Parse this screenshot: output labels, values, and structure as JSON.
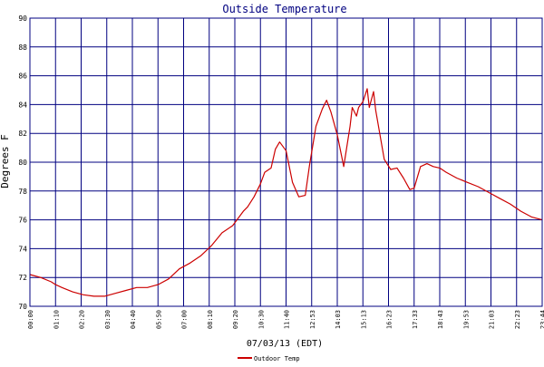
{
  "chart_data": {
    "type": "line",
    "title": "Outside Temperature",
    "xlabel": "07/03/13 (EDT)",
    "ylabel": "Degrees F",
    "ylim": [
      70,
      90
    ],
    "yticks": [
      70,
      72,
      74,
      76,
      78,
      80,
      82,
      84,
      86,
      88,
      90
    ],
    "x_tick_labels": [
      "00:00",
      "01:10",
      "02:20",
      "03:30",
      "04:40",
      "05:50",
      "07:00",
      "08:10",
      "09:20",
      "10:30",
      "11:40",
      "12:53",
      "14:03",
      "15:13",
      "16:23",
      "17:33",
      "18:43",
      "19:53",
      "21:03",
      "22:23",
      "23:44"
    ],
    "grid": true,
    "legend_position": "bottom",
    "colors": {
      "series": "#cc0000",
      "grid": "#000080",
      "title": "#000080"
    },
    "series": [
      {
        "name": "Outdoor Temp",
        "x": [
          0,
          0.5,
          1,
          1.2,
          1.5,
          2,
          2.5,
          3,
          3.5,
          4,
          4.5,
          5,
          5.5,
          6,
          6.5,
          7,
          7.5,
          8,
          8.5,
          9,
          9.5,
          10,
          10.2,
          10.5,
          10.8,
          11,
          11.3,
          11.5,
          11.7,
          12,
          12.3,
          12.6,
          12.9,
          13.1,
          13.4,
          13.7,
          13.9,
          14.1,
          14.4,
          14.7,
          15,
          15.1,
          15.3,
          15.4,
          15.6,
          15.8,
          15.9,
          16.1,
          16.2,
          16.4,
          16.6,
          16.9,
          17.2,
          17.5,
          17.8,
          18,
          18.3,
          18.6,
          18.9,
          19.2,
          19.5,
          20,
          20.5,
          21,
          21.5,
          22,
          22.5,
          23,
          23.5,
          24
        ],
        "values": [
          72.2,
          72.0,
          71.7,
          71.5,
          71.3,
          71.0,
          70.8,
          70.7,
          70.7,
          70.9,
          71.1,
          71.3,
          71.3,
          71.5,
          71.9,
          72.6,
          73.0,
          73.5,
          74.2,
          75.1,
          75.6,
          76.6,
          76.9,
          77.6,
          78.5,
          79.3,
          79.6,
          80.9,
          81.4,
          80.8,
          78.6,
          77.6,
          77.7,
          79.8,
          82.5,
          83.7,
          84.3,
          83.5,
          81.9,
          79.7,
          82.5,
          83.8,
          83.2,
          83.8,
          84.2,
          85.1,
          83.8,
          84.9,
          83.6,
          81.9,
          80.2,
          79.5,
          79.6,
          78.9,
          78.1,
          78.2,
          79.7,
          79.9,
          79.7,
          79.6,
          79.3,
          78.9,
          78.6,
          78.3,
          77.9,
          77.5,
          77.1,
          76.6,
          76.2,
          76.0
        ]
      }
    ]
  }
}
